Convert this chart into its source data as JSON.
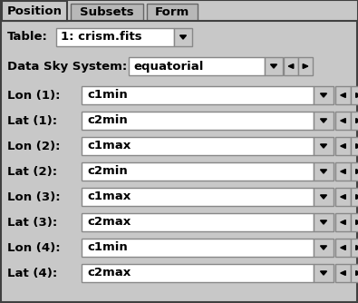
{
  "bg_color": "#c8c8c8",
  "tabs": [
    "Position",
    "Subsets",
    "Form"
  ],
  "active_tab": 0,
  "table_label": "Table:",
  "table_value": "1: crism.fits",
  "sky_label": "Data Sky System:",
  "sky_value": "equatorial",
  "rows": [
    {
      "label": "Lon (1):",
      "value": "c1min"
    },
    {
      "label": "Lat (1):",
      "value": "c2min"
    },
    {
      "label": "Lon (2):",
      "value": "c1max"
    },
    {
      "label": "Lat (2):",
      "value": "c2min"
    },
    {
      "label": "Lon (3):",
      "value": "c1max"
    },
    {
      "label": "Lat (3):",
      "value": "c2max"
    },
    {
      "label": "Lon (4):",
      "value": "c1min"
    },
    {
      "label": "Lat (4):",
      "value": "c2max"
    }
  ],
  "widget_bg": "#ffffff",
  "font_size": 9.5
}
